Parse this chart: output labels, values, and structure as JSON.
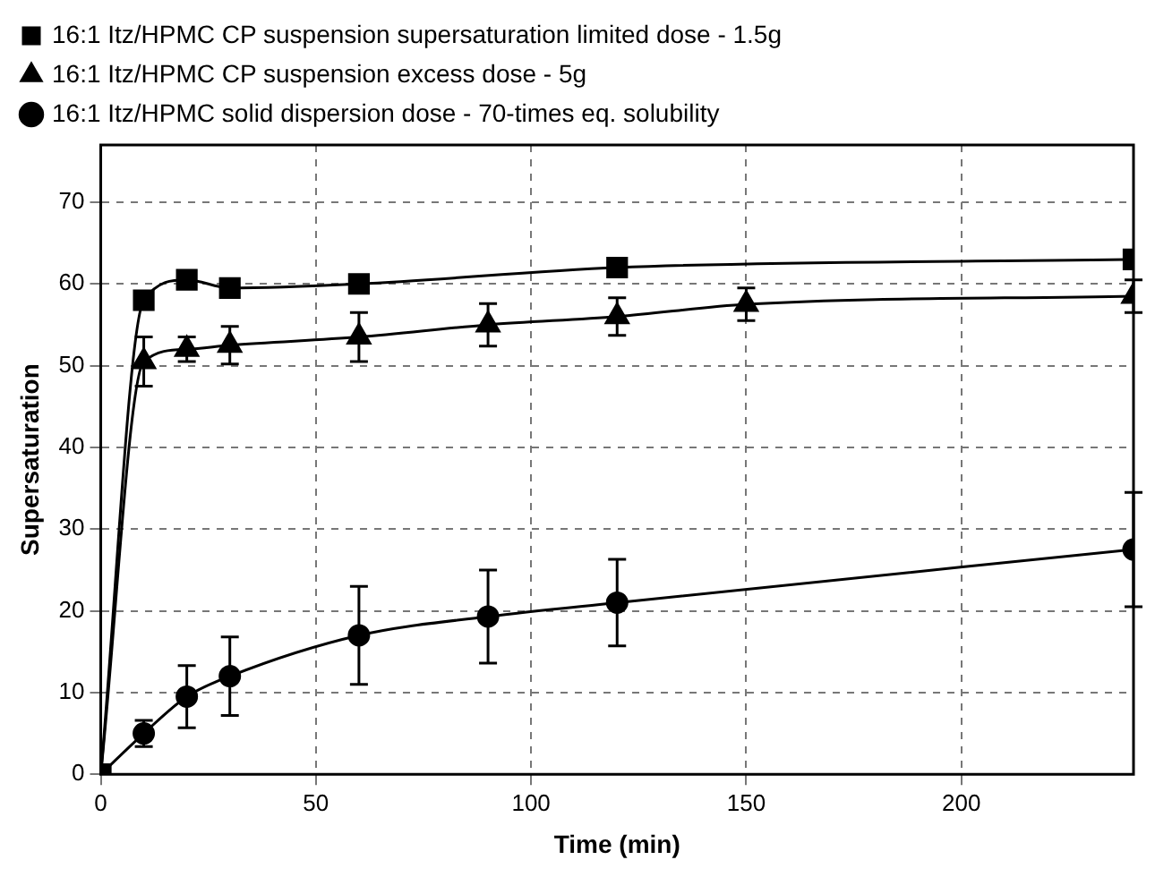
{
  "chart_data": {
    "type": "line",
    "xlabel": "Time (min)",
    "ylabel": "Supersaturation",
    "xlim": [
      0,
      240
    ],
    "xticks": [
      0,
      50,
      100,
      150,
      200
    ],
    "ylim": [
      0,
      77
    ],
    "yticks": [
      0,
      10,
      20,
      30,
      40,
      50,
      60,
      70
    ],
    "grid": true,
    "legend": "top",
    "line_style": "solid",
    "series": [
      {
        "name": "16:1 Itz/HPMC CP suspension supersaturation limited dose - 1.5g",
        "color": "#000000",
        "marker": "square",
        "x": [
          0,
          10,
          20,
          30,
          60,
          120,
          240
        ],
        "values": [
          0,
          58,
          60.5,
          59.5,
          60,
          62,
          63
        ]
      },
      {
        "name": "16:1 Itz/HPMC CP suspension excess dose - 5g",
        "color": "#000000",
        "marker": "triangle",
        "x": [
          0,
          10,
          20,
          30,
          60,
          90,
          120,
          150,
          240
        ],
        "values": [
          0,
          50.5,
          52,
          52.5,
          53.5,
          55,
          56,
          57.5,
          58.5
        ],
        "errors": [
          null,
          3,
          1.5,
          2.3,
          3,
          2.6,
          2.3,
          2,
          2
        ]
      },
      {
        "name": "16:1 Itz/HPMC solid dispersion dose - 70-times eq. solubility",
        "color": "#000000",
        "marker": "circle",
        "x": [
          0,
          10,
          20,
          30,
          60,
          90,
          120,
          240
        ],
        "values": [
          0,
          5,
          9.5,
          12,
          17,
          19.3,
          21,
          27.5
        ],
        "errors": [
          null,
          1.6,
          3.8,
          4.8,
          6,
          5.7,
          5.3,
          7
        ]
      }
    ]
  }
}
